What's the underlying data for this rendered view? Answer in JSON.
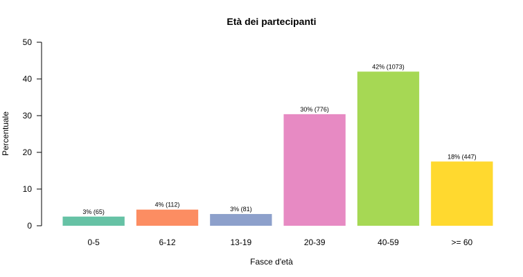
{
  "chart_data": {
    "type": "bar",
    "title": "Età dei partecipanti",
    "xlabel": "Fasce d'età",
    "ylabel": "Percentuale",
    "ylim": [
      0,
      50
    ],
    "yticks": [
      0,
      10,
      20,
      30,
      40,
      50
    ],
    "categories": [
      "0-5",
      "6-12",
      "13-19",
      "20-39",
      "40-59",
      ">= 60"
    ],
    "values": [
      2.5,
      4.4,
      3.2,
      30.4,
      42.0,
      17.5
    ],
    "data_labels": [
      "3% (65)",
      "4% (112)",
      "3% (81)",
      "30% (776)",
      "42% (1073)",
      "18% (447)"
    ],
    "colors": [
      "#66c2a5",
      "#fc8d62",
      "#8da0cb",
      "#e78ac3",
      "#a6d854",
      "#ffd92f"
    ],
    "grid": false
  }
}
